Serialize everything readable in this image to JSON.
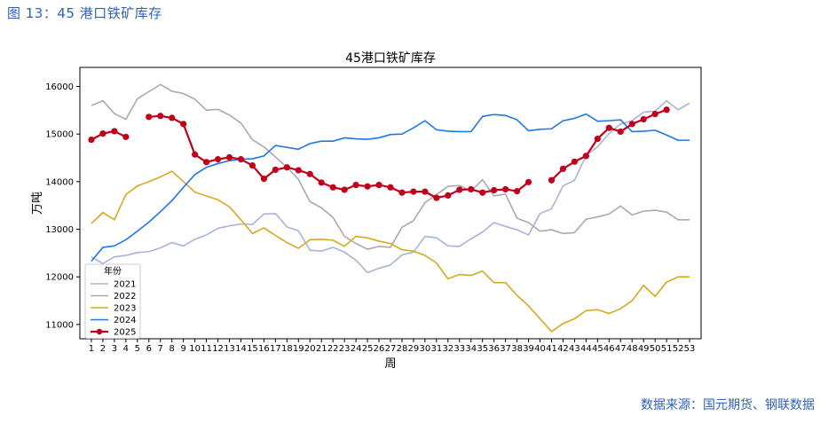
{
  "figure_caption": "图 13：45 港口铁矿库存",
  "source_note": "数据来源：国元期货、钢联数据",
  "chart_data": {
    "type": "line",
    "title": "45港口铁矿库存",
    "xlabel": "周",
    "ylabel": "万吨",
    "xlim": [
      0,
      54
    ],
    "ylim": [
      10700,
      16400
    ],
    "yticks": [
      11000,
      12000,
      13000,
      14000,
      15000,
      16000
    ],
    "legend_title": "年份",
    "legend_position": "lower-left",
    "x": [
      1,
      2,
      3,
      4,
      5,
      6,
      7,
      8,
      9,
      10,
      11,
      12,
      13,
      14,
      15,
      16,
      17,
      18,
      19,
      20,
      21,
      22,
      23,
      24,
      25,
      26,
      27,
      28,
      29,
      30,
      31,
      32,
      33,
      34,
      35,
      36,
      37,
      38,
      39,
      40,
      41,
      42,
      43,
      44,
      45,
      46,
      47,
      48,
      49,
      50,
      51,
      52,
      53
    ],
    "series": [
      {
        "name": "2021",
        "color": "#a9b3d8",
        "marker": false,
        "values": [
          12420,
          12280,
          12420,
          12450,
          12510,
          12530,
          12610,
          12720,
          12650,
          12790,
          12880,
          13020,
          13070,
          13110,
          13100,
          13320,
          13330,
          13050,
          12970,
          12560,
          12540,
          12620,
          12520,
          12350,
          12090,
          12180,
          12250,
          12460,
          12520,
          12850,
          12820,
          12650,
          12640,
          12800,
          12940,
          13140,
          13060,
          12990,
          12880,
          13330,
          13430,
          13910,
          14030,
          14550,
          14730,
          15010,
          15210,
          15280,
          15460,
          15480,
          15700,
          15510,
          15650
        ]
      },
      {
        "name": "2022",
        "color": "#aaaaaa",
        "marker": false,
        "values": [
          15600,
          15700,
          15430,
          15310,
          15740,
          15890,
          16040,
          15900,
          15850,
          15730,
          15500,
          15520,
          15400,
          15230,
          14880,
          14730,
          14520,
          14300,
          14050,
          13580,
          13450,
          13250,
          12850,
          12700,
          12580,
          12640,
          12620,
          13040,
          13180,
          13560,
          13730,
          13900,
          13920,
          13800,
          14040,
          13700,
          13740,
          13230,
          13140,
          12960,
          12990,
          12910,
          12930,
          13210,
          13260,
          13320,
          13490,
          13300,
          13380,
          13400,
          13360,
          13200,
          13200
        ]
      },
      {
        "name": "2023",
        "color": "#d6a91f",
        "marker": false,
        "values": [
          13120,
          13350,
          13200,
          13730,
          13910,
          14000,
          14100,
          14220,
          14000,
          13780,
          13700,
          13620,
          13470,
          13200,
          12910,
          13030,
          12870,
          12720,
          12600,
          12780,
          12790,
          12770,
          12640,
          12850,
          12820,
          12750,
          12700,
          12570,
          12540,
          12450,
          12290,
          11960,
          12050,
          12030,
          12120,
          11880,
          11880,
          11610,
          11390,
          11120,
          10850,
          11020,
          11120,
          11290,
          11310,
          11230,
          11330,
          11500,
          11820,
          11590,
          11890,
          12000,
          12000
        ]
      },
      {
        "name": "2024",
        "color": "#1f77e5",
        "marker": false,
        "values": [
          12330,
          12620,
          12650,
          12780,
          12960,
          13150,
          13370,
          13600,
          13880,
          14150,
          14300,
          14380,
          14440,
          14470,
          14480,
          14540,
          14760,
          14720,
          14680,
          14800,
          14850,
          14850,
          14920,
          14900,
          14890,
          14920,
          14990,
          15000,
          15130,
          15280,
          15090,
          15060,
          15050,
          15050,
          15370,
          15410,
          15390,
          15300,
          15070,
          15100,
          15110,
          15280,
          15330,
          15420,
          15270,
          15280,
          15300,
          15050,
          15060,
          15080,
          14980,
          14870,
          14870
        ]
      },
      {
        "name": "2025",
        "color": "#c0001a",
        "marker": true,
        "values": [
          14880,
          15010,
          15060,
          14940,
          null,
          15360,
          15380,
          15340,
          15210,
          14570,
          14410,
          14470,
          14510,
          14470,
          14340,
          14060,
          14250,
          14300,
          14240,
          14160,
          13980,
          13880,
          13830,
          13930,
          13900,
          13930,
          13880,
          13770,
          13790,
          13790,
          13660,
          13710,
          13830,
          13840,
          13770,
          13820,
          13840,
          13800,
          13990,
          null,
          14030,
          14270,
          14420,
          14540,
          14900,
          15130,
          15050,
          15210,
          15310,
          15420,
          15510,
          null,
          null
        ]
      }
    ]
  }
}
